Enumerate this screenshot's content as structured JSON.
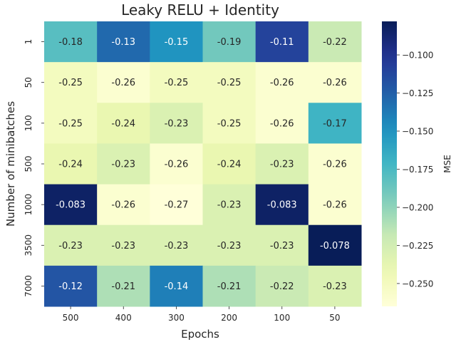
{
  "chart_data": {
    "type": "heatmap",
    "title": "Leaky RELU + Identity",
    "xlabel": "Epochs",
    "ylabel": "Number of minibatches",
    "x_categories": [
      "500",
      "400",
      "300",
      "200",
      "100",
      "50"
    ],
    "y_categories": [
      "1",
      "50",
      "100",
      "500",
      "1000",
      "3500",
      "7000"
    ],
    "values": [
      [
        -0.18,
        -0.13,
        -0.15,
        -0.19,
        -0.11,
        -0.22
      ],
      [
        -0.25,
        -0.26,
        -0.25,
        -0.25,
        -0.26,
        -0.26
      ],
      [
        -0.25,
        -0.24,
        -0.23,
        -0.25,
        -0.26,
        -0.17
      ],
      [
        -0.24,
        -0.23,
        -0.26,
        -0.24,
        -0.23,
        -0.26
      ],
      [
        -0.083,
        -0.26,
        -0.27,
        -0.23,
        -0.083,
        -0.26
      ],
      [
        -0.23,
        -0.23,
        -0.23,
        -0.23,
        -0.23,
        -0.078
      ],
      [
        -0.12,
        -0.21,
        -0.14,
        -0.21,
        -0.22,
        -0.23
      ]
    ],
    "cell_labels": [
      [
        "-0.18",
        "-0.13",
        "-0.15",
        "-0.19",
        "-0.11",
        "-0.22"
      ],
      [
        "-0.25",
        "-0.26",
        "-0.25",
        "-0.25",
        "-0.26",
        "-0.26"
      ],
      [
        "-0.25",
        "-0.24",
        "-0.23",
        "-0.25",
        "-0.26",
        "-0.17"
      ],
      [
        "-0.24",
        "-0.23",
        "-0.26",
        "-0.24",
        "-0.23",
        "-0.26"
      ],
      [
        "-0.083",
        "-0.26",
        "-0.27",
        "-0.23",
        "-0.083",
        "-0.26"
      ],
      [
        "-0.23",
        "-0.23",
        "-0.23",
        "-0.23",
        "-0.23",
        "-0.078"
      ],
      [
        "-0.12",
        "-0.21",
        "-0.14",
        "-0.21",
        "-0.22",
        "-0.23"
      ]
    ],
    "colorbar": {
      "label": "MSE",
      "colormap": "YlGnBu",
      "vmin": -0.265,
      "vmax": -0.078,
      "ticks": [
        -0.1,
        -0.125,
        -0.15,
        -0.175,
        -0.2,
        -0.225,
        -0.25
      ],
      "tick_labels": [
        "−0.100",
        "−0.125",
        "−0.150",
        "−0.175",
        "−0.200",
        "−0.225",
        "−0.250"
      ]
    },
    "colormap_stops": [
      "#ffffd9",
      "#edf8b1",
      "#c7e9b4",
      "#7fcdbb",
      "#41b6c4",
      "#1d91c0",
      "#225ea8",
      "#253494",
      "#081d58"
    ],
    "grid": false
  }
}
